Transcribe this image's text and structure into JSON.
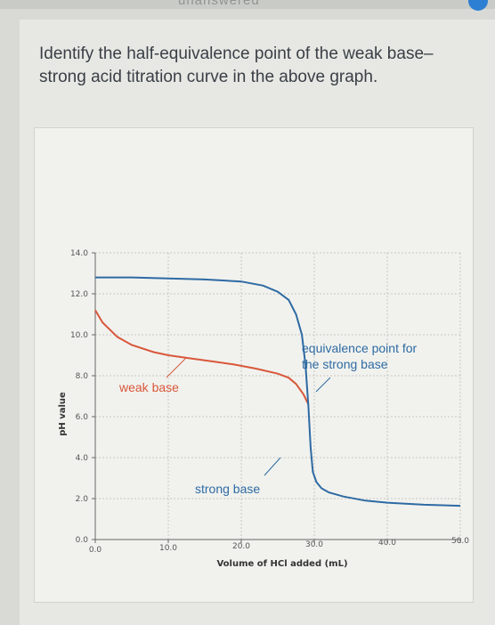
{
  "header": {
    "status_text": "unanswered"
  },
  "question": {
    "text": "Identify the half-equivalence point of the weak base–strong acid titration curve in the above graph."
  },
  "colors": {
    "weak_base": "#d9573a",
    "strong_base": "#2e6aa3",
    "accent": "#2d7fd3"
  },
  "chart_data": {
    "type": "line",
    "title": "",
    "xlabel": "Volume of HCl added (mL)",
    "ylabel": "pH value",
    "xlim": [
      0,
      50
    ],
    "ylim": [
      0,
      14
    ],
    "x_ticks": [
      "0.0",
      "10.0",
      "20.0",
      "30.0",
      "40.0",
      "50.0"
    ],
    "y_ticks": [
      "0.0",
      "2.0",
      "4.0",
      "6.0",
      "8.0",
      "10.0",
      "12.0",
      "14.0"
    ],
    "grid": true,
    "series": [
      {
        "name": "weak base",
        "color": "#d9573a",
        "x": [
          0,
          1,
          3,
          5,
          8,
          10,
          13,
          16,
          19,
          22,
          25,
          26.5,
          27.5,
          28.5,
          29.2
        ],
        "y": [
          11.2,
          10.6,
          9.9,
          9.5,
          9.15,
          9.0,
          8.85,
          8.7,
          8.55,
          8.35,
          8.1,
          7.9,
          7.6,
          7.1,
          6.6
        ]
      },
      {
        "name": "strong base",
        "color": "#2e6aa3",
        "x": [
          0,
          5,
          10,
          15,
          20,
          23,
          25,
          26.5,
          27.5,
          28.3,
          28.8,
          29.2,
          29.5,
          29.8,
          30.3,
          31,
          32,
          34,
          37,
          40,
          45,
          50
        ],
        "y": [
          12.8,
          12.8,
          12.75,
          12.7,
          12.6,
          12.4,
          12.1,
          11.7,
          11.0,
          10.0,
          8.5,
          6.5,
          4.5,
          3.3,
          2.8,
          2.5,
          2.3,
          2.1,
          1.9,
          1.8,
          1.7,
          1.65
        ]
      }
    ],
    "annotations": [
      {
        "label": "weak base",
        "color": "#d9573a"
      },
      {
        "label": "strong base",
        "color": "#2e6aa3"
      },
      {
        "label": "equivalence point for the strong base",
        "line1": "equivalence point for",
        "line2": "the strong base",
        "color": "#2e6aa3"
      }
    ]
  }
}
